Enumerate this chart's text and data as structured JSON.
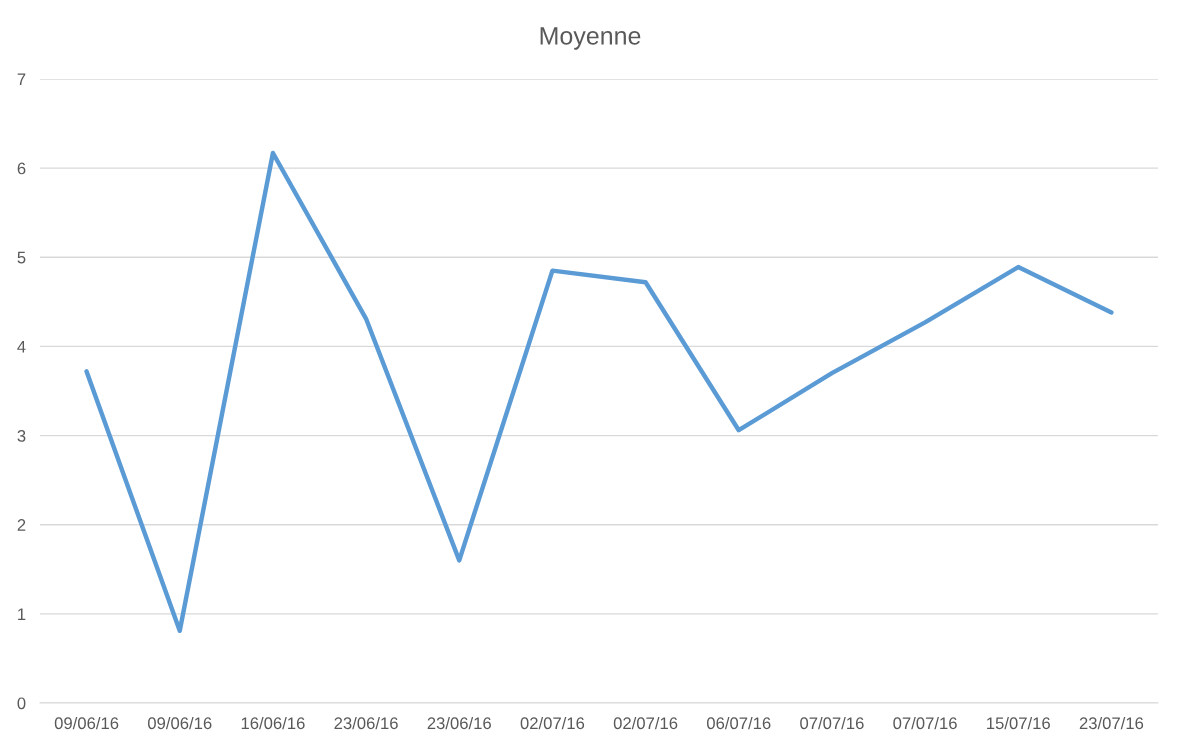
{
  "chart_data": {
    "type": "line",
    "title": "Moyenne",
    "categories": [
      "09/06/16",
      "09/06/16",
      "16/06/16",
      "23/06/16",
      "23/06/16",
      "02/07/16",
      "02/07/16",
      "06/07/16",
      "07/07/16",
      "07/07/16",
      "15/07/16",
      "23/07/16"
    ],
    "series": [
      {
        "color": "#5b9bd5",
        "values": [
          3.72,
          0.81,
          6.17,
          4.31,
          1.6,
          4.85,
          4.72,
          3.06,
          3.7,
          4.27,
          4.89,
          4.38
        ]
      }
    ],
    "ylim": [
      0,
      7
    ],
    "yticks": [
      0,
      1,
      2,
      3,
      4,
      5,
      6,
      7
    ],
    "grid": "y",
    "legend": false,
    "marker": "none",
    "line_style": "solid"
  }
}
